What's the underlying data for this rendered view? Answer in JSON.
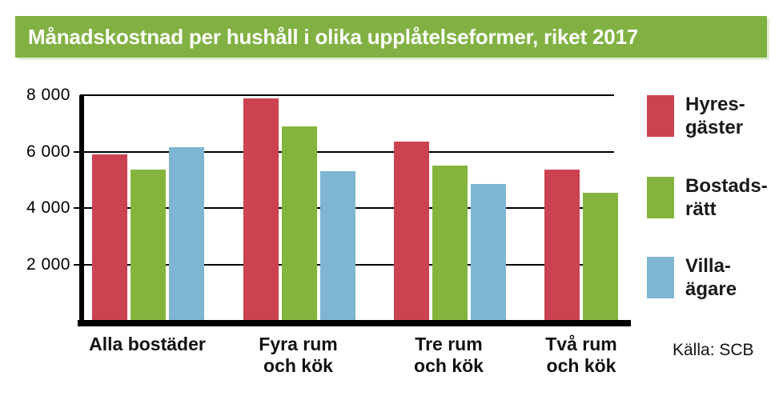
{
  "header": {
    "title": "Månadskostnad per hushåll i olika upplåtelseformer, riket 2017",
    "banner_color": "#81b143",
    "title_color": "#ffffff"
  },
  "source": {
    "label": "Källa: SCB"
  },
  "chart_data": {
    "type": "bar",
    "title": "Månadskostnad per hushåll i olika upplåtelseformer, riket 2017",
    "categories": [
      "Alla bostäder",
      "Fyra rum\noch kök",
      "Tre rum\noch kök",
      "Två rum\noch kök"
    ],
    "series": [
      {
        "name": "Hyresgäster",
        "legend_lines": "Hyres-\ngäster",
        "color": "#cb4351",
        "values": [
          5900,
          7900,
          6350,
          5350
        ]
      },
      {
        "name": "Bostadsrätt",
        "legend_lines": "Bostads-\nrätt",
        "color": "#85b43e",
        "values": [
          5350,
          6900,
          5500,
          4550
        ]
      },
      {
        "name": "Villaägare",
        "legend_lines": "Villa-\nägare",
        "color": "#7db5d3",
        "values": [
          6150,
          5300,
          4850,
          null
        ]
      }
    ],
    "ylim": [
      0,
      8000
    ],
    "yticks": [
      2000,
      4000,
      6000,
      8000
    ],
    "ytick_labels": [
      "2 000",
      "4 000",
      "6 000",
      "8 000"
    ],
    "xlabel": "",
    "ylabel": "",
    "grid": true,
    "legend_position": "right",
    "axis_color": "#000000",
    "source": "Källa: SCB"
  }
}
